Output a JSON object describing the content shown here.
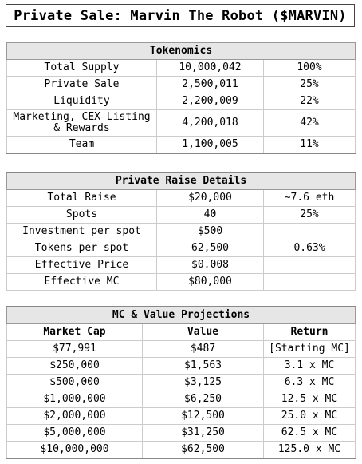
{
  "title": "Private Sale: Marvin The Robot ($MARVIN)",
  "tokenomics": {
    "header": "Tokenomics",
    "rows": [
      {
        "label": "Total Supply",
        "amount": "10,000,042",
        "pct": "100%"
      },
      {
        "label": "Private Sale",
        "amount": "2,500,011",
        "pct": "25%"
      },
      {
        "label": "Liquidity",
        "amount": "2,200,009",
        "pct": "22%"
      },
      {
        "label": "Marketing, CEX Listing & Rewards",
        "amount": "4,200,018",
        "pct": "42%"
      },
      {
        "label": "Team",
        "amount": "1,100,005",
        "pct": "11%"
      }
    ]
  },
  "raise": {
    "header": "Private Raise Details",
    "rows": [
      {
        "label": "Total Raise",
        "value": "$20,000",
        "extra": "~7.6 eth"
      },
      {
        "label": "Spots",
        "value": "40",
        "extra": "25%"
      },
      {
        "label": "Investment per spot",
        "value": "$500",
        "extra": ""
      },
      {
        "label": "Tokens per spot",
        "value": "62,500",
        "extra": "0.63%"
      },
      {
        "label": "Effective Price",
        "value": "$0.008",
        "extra": ""
      },
      {
        "label": "Effective MC",
        "value": "$80,000",
        "extra": ""
      }
    ]
  },
  "projections": {
    "header": "MC & Value Projections",
    "columns": [
      "Market Cap",
      "Value",
      "Return"
    ],
    "rows": [
      {
        "mc": "$77,991",
        "value": "$487",
        "ret": "[Starting MC]"
      },
      {
        "mc": "$250,000",
        "value": "$1,563",
        "ret": "3.1 x MC"
      },
      {
        "mc": "$500,000",
        "value": "$3,125",
        "ret": "6.3 x MC"
      },
      {
        "mc": "$1,000,000",
        "value": "$6,250",
        "ret": "12.5 x MC"
      },
      {
        "mc": "$2,000,000",
        "value": "$12,500",
        "ret": "25.0 x MC"
      },
      {
        "mc": "$5,000,000",
        "value": "$31,250",
        "ret": "62.5 x MC"
      },
      {
        "mc": "$10,000,000",
        "value": "$62,500",
        "ret": "125.0 x MC"
      }
    ]
  }
}
